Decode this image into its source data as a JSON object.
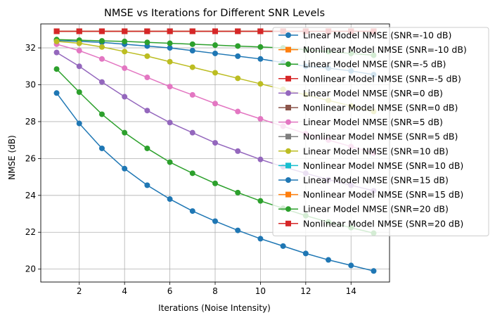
{
  "chart_data": {
    "type": "line",
    "title": "NMSE vs Iterations for Different SNR Levels",
    "xlabel": "Iterations (Noise Intensity)",
    "ylabel": "NMSE (dB)",
    "xlim": [
      0.3,
      15.7
    ],
    "ylim": [
      19.3,
      33.3
    ],
    "xticks": [
      2,
      4,
      6,
      8,
      10,
      12,
      14
    ],
    "yticks": [
      20,
      22,
      24,
      26,
      28,
      30,
      32
    ],
    "grid": true,
    "legend_position": "upper-right",
    "x": [
      1,
      2,
      3,
      4,
      5,
      6,
      7,
      8,
      9,
      10,
      11,
      12,
      13,
      14,
      15
    ],
    "series": [
      {
        "name": "Linear Model NMSE (SNR=-10 dB)",
        "color": "#1f77b4",
        "marker": "circle",
        "values": [
          32.4,
          32.35,
          32.3,
          32.2,
          32.1,
          32.0,
          31.85,
          31.7,
          31.55,
          31.4,
          31.2,
          31.0,
          30.9,
          30.75,
          30.55
        ]
      },
      {
        "name": "Nonlinear Model NMSE (SNR=-10 dB)",
        "color": "#ff7f0e",
        "marker": "square",
        "values": [
          32.9,
          32.9,
          32.9,
          32.9,
          32.9,
          32.9,
          32.9,
          32.9,
          32.9,
          32.9,
          32.9,
          32.9,
          32.9,
          32.9,
          32.9
        ]
      },
      {
        "name": "Linear Model NMSE (SNR=-5 dB)",
        "color": "#2ca02c",
        "marker": "circle",
        "values": [
          32.45,
          32.42,
          32.38,
          32.35,
          32.3,
          32.25,
          32.2,
          32.15,
          32.1,
          32.05,
          32.0,
          31.9,
          31.8,
          31.7,
          31.6
        ]
      },
      {
        "name": "Nonlinear Model NMSE (SNR=-5 dB)",
        "color": "#d62728",
        "marker": "square",
        "values": [
          32.9,
          32.9,
          32.9,
          32.9,
          32.9,
          32.9,
          32.9,
          32.9,
          32.9,
          32.9,
          32.9,
          32.9,
          32.9,
          32.9,
          32.9
        ]
      },
      {
        "name": "Linear Model NMSE (SNR=0 dB)",
        "color": "#9467bd",
        "marker": "circle",
        "values": [
          31.75,
          31.0,
          30.15,
          29.35,
          28.6,
          27.95,
          27.4,
          26.85,
          26.4,
          25.95,
          25.55,
          25.2,
          24.85,
          24.55,
          24.25
        ]
      },
      {
        "name": "Nonlinear Model NMSE (SNR=0 dB)",
        "color": "#8c564b",
        "marker": "square",
        "values": [
          32.9,
          32.9,
          32.9,
          32.9,
          32.9,
          32.9,
          32.9,
          32.9,
          32.9,
          32.9,
          32.9,
          32.9,
          32.9,
          32.9,
          32.9
        ]
      },
      {
        "name": "Linear Model NMSE (SNR=5 dB)",
        "color": "#e377c2",
        "marker": "circle",
        "values": [
          32.2,
          31.85,
          31.4,
          30.9,
          30.4,
          29.9,
          29.45,
          28.98,
          28.55,
          28.15,
          27.75,
          27.35,
          27.0,
          26.65,
          26.3
        ]
      },
      {
        "name": "Nonlinear Model NMSE (SNR=5 dB)",
        "color": "#7f7f7f",
        "marker": "square",
        "values": [
          32.9,
          32.9,
          32.9,
          32.9,
          32.9,
          32.9,
          32.9,
          32.9,
          32.9,
          32.9,
          32.9,
          32.9,
          32.9,
          32.9,
          32.9
        ]
      },
      {
        "name": "Linear Model NMSE (SNR=10 dB)",
        "color": "#bcbd22",
        "marker": "circle",
        "values": [
          32.35,
          32.25,
          32.05,
          31.8,
          31.55,
          31.25,
          30.95,
          30.65,
          30.35,
          30.05,
          29.75,
          29.45,
          29.15,
          28.85,
          28.55
        ]
      },
      {
        "name": "Nonlinear Model NMSE (SNR=10 dB)",
        "color": "#17becf",
        "marker": "square",
        "values": [
          32.9,
          32.9,
          32.9,
          32.9,
          32.9,
          32.9,
          32.9,
          32.9,
          32.9,
          32.9,
          32.9,
          32.9,
          32.9,
          32.9,
          32.9
        ]
      },
      {
        "name": "Linear Model NMSE (SNR=15 dB)",
        "color": "#1f77b4",
        "marker": "circle",
        "values": [
          29.55,
          27.9,
          26.55,
          25.45,
          24.55,
          23.8,
          23.15,
          22.6,
          22.1,
          21.65,
          21.25,
          20.85,
          20.5,
          20.2,
          19.9
        ]
      },
      {
        "name": "Nonlinear Model NMSE (SNR=15 dB)",
        "color": "#ff7f0e",
        "marker": "square",
        "values": [
          32.9,
          32.9,
          32.9,
          32.9,
          32.9,
          32.9,
          32.9,
          32.9,
          32.9,
          32.9,
          32.9,
          32.9,
          32.9,
          32.9,
          32.9
        ]
      },
      {
        "name": "Linear Model NMSE (SNR=20 dB)",
        "color": "#2ca02c",
        "marker": "circle",
        "values": [
          30.85,
          29.6,
          28.4,
          27.4,
          26.55,
          25.8,
          25.2,
          24.65,
          24.15,
          23.7,
          23.3,
          22.9,
          22.55,
          22.25,
          21.95
        ]
      },
      {
        "name": "Nonlinear Model NMSE (SNR=20 dB)",
        "color": "#d62728",
        "marker": "square",
        "values": [
          32.9,
          32.9,
          32.9,
          32.9,
          32.9,
          32.9,
          32.9,
          32.9,
          32.9,
          32.9,
          32.9,
          32.9,
          32.9,
          32.9,
          32.9
        ]
      }
    ]
  }
}
